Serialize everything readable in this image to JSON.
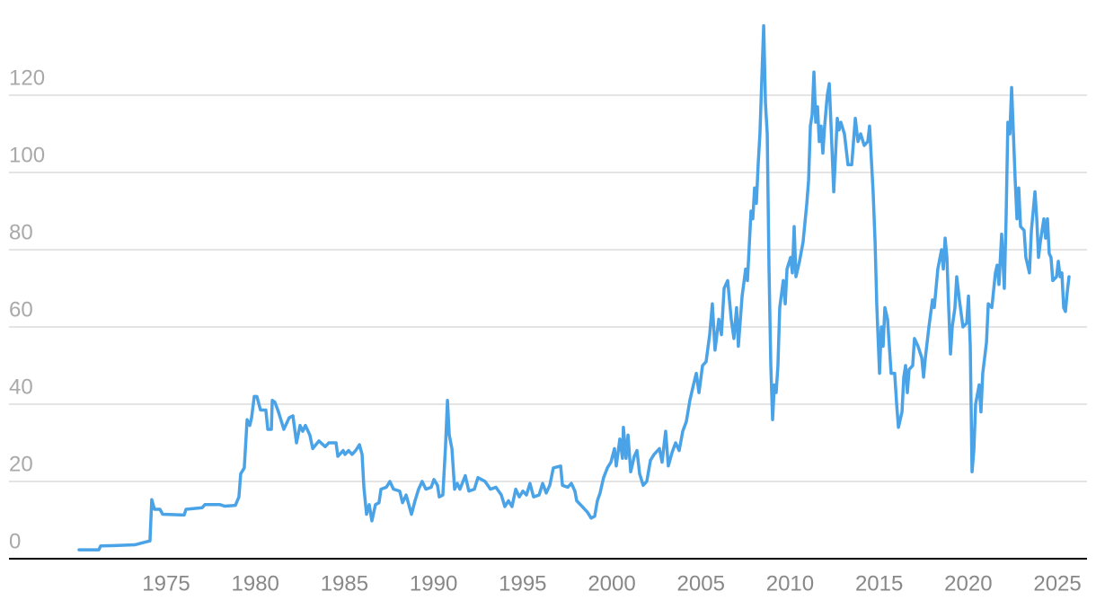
{
  "chart_data": {
    "type": "line",
    "x": [
      1970.11,
      1971.22,
      1971.32,
      1972.13,
      1973.24,
      1973.74,
      1974.09,
      1974.19,
      1974.34,
      1974.65,
      1974.8,
      1976.01,
      1976.11,
      1977.02,
      1977.17,
      1978.02,
      1978.28,
      1978.88,
      1979.08,
      1979.18,
      1979.38,
      1979.54,
      1979.69,
      1979.79,
      1979.94,
      1980.09,
      1980.29,
      1980.59,
      1980.7,
      1980.9,
      1980.95,
      1981.1,
      1981.3,
      1981.6,
      1981.9,
      1982.11,
      1982.31,
      1982.51,
      1982.66,
      1982.81,
      1983.06,
      1983.22,
      1983.57,
      1983.92,
      1984.12,
      1984.53,
      1984.63,
      1984.93,
      1985.03,
      1985.23,
      1985.43,
      1985.63,
      1985.84,
      1985.99,
      1986.09,
      1986.24,
      1986.39,
      1986.54,
      1986.74,
      1986.94,
      1987.05,
      1987.35,
      1987.55,
      1987.75,
      1988.1,
      1988.26,
      1988.46,
      1988.76,
      1988.96,
      1989.16,
      1989.36,
      1989.57,
      1989.87,
      1990.02,
      1990.22,
      1990.32,
      1990.52,
      1990.67,
      1990.78,
      1990.88,
      1991.03,
      1991.18,
      1991.33,
      1991.48,
      1991.78,
      1991.98,
      1992.29,
      1992.49,
      1992.89,
      1993.19,
      1993.5,
      1993.8,
      1994.0,
      1994.2,
      1994.4,
      1994.61,
      1994.81,
      1995.01,
      1995.21,
      1995.41,
      1995.61,
      1995.92,
      1996.12,
      1996.32,
      1996.52,
      1996.72,
      1997.13,
      1997.23,
      1997.53,
      1997.73,
      1997.93,
      1998.03,
      1998.34,
      1998.64,
      1998.84,
      1999.04,
      1999.19,
      1999.34,
      1999.54,
      1999.75,
      1999.95,
      2000.15,
      2000.25,
      2000.45,
      2000.6,
      2000.65,
      2000.8,
      2000.91,
      2001.06,
      2001.26,
      2001.41,
      2001.56,
      2001.76,
      2001.96,
      2002.17,
      2002.37,
      2002.67,
      2002.82,
      2003.02,
      2003.17,
      2003.38,
      2003.58,
      2003.78,
      2003.98,
      2004.18,
      2004.38,
      2004.58,
      2004.74,
      2004.89,
      2005.09,
      2005.29,
      2005.49,
      2005.64,
      2005.79,
      2006.0,
      2006.15,
      2006.3,
      2006.5,
      2006.7,
      2006.85,
      2007.0,
      2007.1,
      2007.31,
      2007.51,
      2007.61,
      2007.81,
      2007.91,
      2008.01,
      2008.11,
      2008.21,
      2008.31,
      2008.42,
      2008.52,
      2008.62,
      2008.72,
      2008.82,
      2008.92,
      2009.02,
      2009.12,
      2009.22,
      2009.32,
      2009.42,
      2009.62,
      2009.73,
      2009.83,
      2010.03,
      2010.13,
      2010.23,
      2010.33,
      2010.53,
      2010.73,
      2010.94,
      2011.04,
      2011.14,
      2011.24,
      2011.34,
      2011.44,
      2011.54,
      2011.64,
      2011.74,
      2011.84,
      2011.94,
      2012.09,
      2012.2,
      2012.3,
      2012.45,
      2012.65,
      2012.75,
      2012.85,
      2013.05,
      2013.25,
      2013.46,
      2013.66,
      2013.81,
      2013.96,
      2014.16,
      2014.36,
      2014.46,
      2014.66,
      2014.77,
      2014.87,
      2015.02,
      2015.12,
      2015.22,
      2015.32,
      2015.47,
      2015.57,
      2015.67,
      2015.87,
      2015.98,
      2016.08,
      2016.28,
      2016.38,
      2016.48,
      2016.58,
      2016.68,
      2016.88,
      2016.98,
      2017.18,
      2017.39,
      2017.49,
      2017.59,
      2017.79,
      2017.99,
      2018.09,
      2018.29,
      2018.5,
      2018.6,
      2018.7,
      2018.8,
      2018.9,
      2019.0,
      2019.1,
      2019.25,
      2019.35,
      2019.5,
      2019.7,
      2019.91,
      2020.01,
      2020.11,
      2020.21,
      2020.31,
      2020.41,
      2020.61,
      2020.71,
      2020.81,
      2021.02,
      2021.12,
      2021.32,
      2021.52,
      2021.62,
      2021.72,
      2021.87,
      2022.02,
      2022.12,
      2022.22,
      2022.33,
      2022.43,
      2022.53,
      2022.63,
      2022.73,
      2022.83,
      2022.93,
      2023.13,
      2023.23,
      2023.43,
      2023.54,
      2023.64,
      2023.74,
      2023.84,
      2023.94,
      2024.04,
      2024.14,
      2024.24,
      2024.34,
      2024.44,
      2024.54,
      2024.64,
      2024.74,
      2024.95,
      2025.05,
      2025.15,
      2025.25,
      2025.35,
      2025.45,
      2025.55,
      2025.65
    ],
    "values": [
      2.3,
      2.3,
      3.3,
      3.4,
      3.6,
      4.2,
      4.6,
      15.3,
      12.8,
      12.8,
      11.5,
      11.3,
      12.8,
      13.2,
      14,
      14,
      13.6,
      13.8,
      16,
      22,
      23.5,
      36,
      34.5,
      36.5,
      42,
      42,
      38.5,
      38.5,
      33.5,
      33.5,
      41,
      40.5,
      38,
      33.5,
      36.5,
      37,
      30,
      34.5,
      33,
      34.5,
      32,
      28.5,
      30.5,
      29,
      30,
      30,
      26.5,
      28,
      27,
      28,
      27,
      28,
      29.5,
      27,
      18.5,
      11.5,
      14,
      9.8,
      14,
      14.5,
      18,
      18.5,
      20,
      18,
      17.5,
      14.5,
      16.5,
      11.5,
      15,
      18,
      20,
      18,
      18.5,
      20.5,
      19,
      16,
      16.5,
      29,
      41,
      32,
      28.5,
      18,
      19.5,
      18,
      21.5,
      17.5,
      18,
      21,
      20,
      18,
      18.5,
      16.5,
      13.5,
      15,
      13.5,
      18,
      16,
      17.5,
      16.5,
      19.5,
      16,
      16.5,
      19.5,
      17,
      19,
      23.5,
      24,
      19,
      18.5,
      19.5,
      17.5,
      15,
      13.5,
      12,
      10.5,
      11,
      15,
      17,
      21,
      23.5,
      25,
      28.5,
      24,
      31,
      26,
      34,
      26,
      32,
      22.5,
      26.5,
      28,
      22,
      19,
      20,
      25.5,
      27,
      28.5,
      25,
      33,
      24,
      27.5,
      30,
      28,
      33,
      35.5,
      41,
      45,
      48,
      43,
      50,
      51,
      58,
      66,
      54,
      62,
      58,
      70,
      72,
      62,
      57,
      65,
      55,
      68,
      75,
      72,
      90,
      88,
      96,
      92,
      102,
      110,
      125,
      138,
      118,
      110,
      75,
      50,
      36,
      45,
      43,
      50,
      65,
      72,
      66,
      75,
      78,
      74,
      86,
      73,
      77,
      82,
      92,
      98,
      112,
      115,
      126,
      113,
      117,
      108,
      112,
      105,
      112,
      120,
      123,
      112,
      95,
      114,
      111,
      113,
      110,
      102,
      102,
      114,
      108,
      110,
      107,
      108,
      112,
      95,
      82,
      65,
      48,
      60,
      55,
      65,
      62,
      55,
      48,
      48,
      40,
      34,
      38,
      47,
      50,
      43,
      49,
      50,
      57,
      55,
      52,
      47,
      52,
      60,
      67,
      65,
      75,
      80,
      75,
      83,
      78,
      65,
      53,
      60,
      65,
      73,
      67,
      60,
      61,
      68,
      55,
      22.5,
      28,
      40,
      45,
      38,
      48,
      56,
      66,
      65,
      74,
      76,
      71,
      84,
      70,
      88,
      113,
      110,
      122,
      110,
      98,
      88,
      96,
      86,
      85,
      78,
      74,
      85,
      90,
      95,
      88,
      78,
      82,
      85,
      88,
      83,
      88,
      79,
      78,
      72,
      73,
      77,
      73,
      74,
      65,
      64,
      69,
      73
    ],
    "color": "#4aa3e6",
    "xlim": [
      1966.18,
      2026.66
    ],
    "xticks": [
      1975,
      1980,
      1985,
      1990,
      1995,
      2000,
      2005,
      2010,
      2015,
      2020,
      2025
    ],
    "ylim": [
      0,
      140
    ],
    "yticks": [
      0,
      20,
      40,
      60,
      80,
      100,
      120
    ],
    "grid": true
  }
}
